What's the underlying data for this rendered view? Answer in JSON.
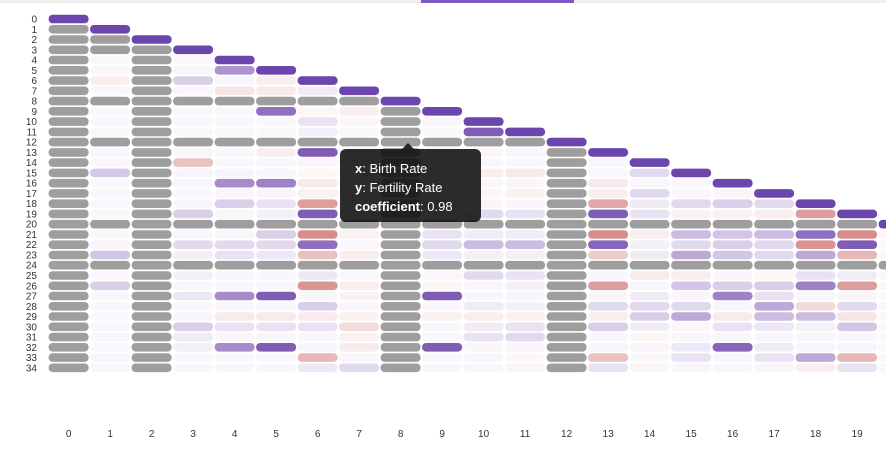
{
  "chart_data": {
    "type": "heatmap",
    "title": "",
    "xlabel": "",
    "ylabel": "",
    "x_categories": [
      "0",
      "1",
      "2",
      "3",
      "4",
      "5",
      "6",
      "7",
      "8",
      "9",
      "10",
      "11",
      "12",
      "13",
      "14",
      "15",
      "16",
      "17",
      "18",
      "19"
    ],
    "y_categories": [
      "0",
      "1",
      "2",
      "3",
      "4",
      "5",
      "6",
      "7",
      "8",
      "9",
      "10",
      "11",
      "12",
      "13",
      "14",
      "15",
      "16",
      "17",
      "18",
      "19",
      "20",
      "21",
      "22",
      "23",
      "24",
      "25",
      "26",
      "27",
      "28",
      "29",
      "30",
      "31",
      "32",
      "33",
      "34"
    ],
    "value_range": [
      -1,
      1
    ],
    "colors": {
      "positive": "#6a3fa8",
      "negative": "#c0504d",
      "diagonal": "#6b46ad",
      "missing": "#9e9e9e"
    },
    "missing_columns": [
      0,
      2,
      8,
      12
    ],
    "missing_rows": [
      2,
      3,
      8,
      12,
      20,
      24
    ],
    "tooltip": {
      "x_key": "x",
      "x_value": "Birth Rate",
      "y_key": "y",
      "y_value": "Fertility Rate",
      "coef_key": "coefficient",
      "coef_value": "0.98"
    },
    "cells": [
      [
        0,
        1,
        0.05
      ],
      [
        0,
        2,
        0.0
      ],
      [
        1,
        4,
        0.03
      ],
      [
        1,
        5,
        0.03
      ],
      [
        1,
        6,
        -0.1
      ],
      [
        1,
        7,
        0.02
      ],
      [
        1,
        13,
        0.02
      ],
      [
        1,
        15,
        0.28
      ],
      [
        1,
        16,
        0.03
      ],
      [
        1,
        19,
        0.02
      ],
      [
        1,
        21,
        0.03
      ],
      [
        1,
        22,
        0.05
      ],
      [
        1,
        23,
        0.3
      ],
      [
        1,
        25,
        0.03
      ],
      [
        1,
        26,
        0.25
      ],
      [
        1,
        33,
        0.05
      ],
      [
        3,
        5,
        0.05
      ],
      [
        3,
        6,
        0.25
      ],
      [
        3,
        7,
        0.03
      ],
      [
        3,
        13,
        0.05
      ],
      [
        3,
        14,
        -0.35
      ],
      [
        3,
        15,
        0.05
      ],
      [
        3,
        16,
        0.05
      ],
      [
        3,
        17,
        0.03
      ],
      [
        3,
        18,
        0.05
      ],
      [
        3,
        19,
        0.25
      ],
      [
        3,
        21,
        0.05
      ],
      [
        3,
        22,
        0.2
      ],
      [
        3,
        23,
        0.08
      ],
      [
        3,
        25,
        0.08
      ],
      [
        3,
        26,
        0.05
      ],
      [
        3,
        27,
        0.12
      ],
      [
        3,
        29,
        0.05
      ],
      [
        3,
        30,
        0.25
      ],
      [
        3,
        31,
        0.1
      ],
      [
        3,
        32,
        0.08
      ],
      [
        3,
        33,
        0.03
      ],
      [
        3,
        34,
        0.03
      ],
      [
        4,
        5,
        0.55
      ],
      [
        4,
        6,
        0.03
      ],
      [
        4,
        7,
        -0.15
      ],
      [
        4,
        9,
        0.03
      ],
      [
        4,
        10,
        0.03
      ],
      [
        4,
        13,
        0.04
      ],
      [
        4,
        15,
        0.06
      ],
      [
        4,
        16,
        0.6
      ],
      [
        4,
        17,
        0.05
      ],
      [
        4,
        18,
        0.25
      ],
      [
        4,
        19,
        0.05
      ],
      [
        4,
        21,
        0.05
      ],
      [
        4,
        22,
        0.2
      ],
      [
        4,
        23,
        0.15
      ],
      [
        4,
        25,
        0.05
      ],
      [
        4,
        26,
        0.03
      ],
      [
        4,
        27,
        0.6
      ],
      [
        4,
        28,
        0.03
      ],
      [
        4,
        29,
        -0.12
      ],
      [
        4,
        30,
        0.15
      ],
      [
        4,
        31,
        0.05
      ],
      [
        4,
        32,
        0.6
      ],
      [
        4,
        33,
        0.03
      ],
      [
        4,
        34,
        0.03
      ],
      [
        5,
        6,
        -0.1
      ],
      [
        5,
        7,
        -0.12
      ],
      [
        5,
        9,
        0.75
      ],
      [
        5,
        10,
        0.03
      ],
      [
        5,
        13,
        -0.1
      ],
      [
        5,
        15,
        0.05
      ],
      [
        5,
        16,
        0.65
      ],
      [
        5,
        17,
        0.05
      ],
      [
        5,
        18,
        0.15
      ],
      [
        5,
        19,
        0.08
      ],
      [
        5,
        21,
        0.25
      ],
      [
        5,
        22,
        0.2
      ],
      [
        5,
        23,
        0.12
      ],
      [
        5,
        25,
        0.05
      ],
      [
        5,
        26,
        0.03
      ],
      [
        5,
        27,
        0.85
      ],
      [
        5,
        28,
        0.03
      ],
      [
        5,
        29,
        -0.12
      ],
      [
        5,
        30,
        0.15
      ],
      [
        5,
        31,
        0.05
      ],
      [
        5,
        32,
        0.85
      ],
      [
        5,
        33,
        0.03
      ],
      [
        5,
        34,
        0.03
      ],
      [
        6,
        7,
        0.1
      ],
      [
        6,
        9,
        -0.05
      ],
      [
        6,
        10,
        0.15
      ],
      [
        6,
        11,
        0.08
      ],
      [
        6,
        13,
        0.85
      ],
      [
        6,
        14,
        0.05
      ],
      [
        6,
        15,
        -0.05
      ],
      [
        6,
        16,
        -0.12
      ],
      [
        6,
        17,
        -0.08
      ],
      [
        6,
        18,
        -0.55
      ],
      [
        6,
        19,
        0.85
      ],
      [
        6,
        21,
        -0.65
      ],
      [
        6,
        22,
        0.75
      ],
      [
        6,
        23,
        -0.35
      ],
      [
        6,
        25,
        0.12
      ],
      [
        6,
        26,
        -0.6
      ],
      [
        6,
        27,
        0.05
      ],
      [
        6,
        28,
        0.25
      ],
      [
        6,
        29,
        -0.12
      ],
      [
        6,
        30,
        0.15
      ],
      [
        6,
        31,
        0.05
      ],
      [
        6,
        32,
        0.05
      ],
      [
        6,
        33,
        -0.4
      ],
      [
        6,
        34,
        0.12
      ],
      [
        7,
        9,
        -0.1
      ],
      [
        7,
        10,
        0.02
      ],
      [
        7,
        11,
        0.03
      ],
      [
        7,
        13,
        0.05
      ],
      [
        7,
        14,
        0.02
      ],
      [
        7,
        15,
        0.02
      ],
      [
        7,
        16,
        -0.1
      ],
      [
        7,
        17,
        0.03
      ],
      [
        7,
        18,
        -0.08
      ],
      [
        7,
        19,
        0.04
      ],
      [
        7,
        21,
        -0.08
      ],
      [
        7,
        22,
        0.03
      ],
      [
        7,
        23,
        -0.1
      ],
      [
        7,
        25,
        0.02
      ],
      [
        7,
        26,
        -0.1
      ],
      [
        7,
        27,
        -0.08
      ],
      [
        7,
        28,
        0.02
      ],
      [
        7,
        29,
        -0.08
      ],
      [
        7,
        30,
        -0.2
      ],
      [
        7,
        31,
        -0.08
      ],
      [
        7,
        32,
        -0.12
      ],
      [
        7,
        33,
        0.05
      ],
      [
        7,
        34,
        0.2
      ],
      [
        9,
        10,
        0.05
      ],
      [
        9,
        11,
        0.03
      ],
      [
        9,
        13,
        0.05
      ],
      [
        9,
        14,
        0.03
      ],
      [
        9,
        15,
        0.03
      ],
      [
        9,
        16,
        -0.05
      ],
      [
        9,
        17,
        0.03
      ],
      [
        9,
        18,
        0.12
      ],
      [
        9,
        19,
        -0.05
      ],
      [
        9,
        21,
        0.15
      ],
      [
        9,
        22,
        0.2
      ],
      [
        9,
        23,
        0.12
      ],
      [
        9,
        25,
        0.03
      ],
      [
        9,
        26,
        -0.05
      ],
      [
        9,
        27,
        0.85
      ],
      [
        9,
        28,
        0.03
      ],
      [
        9,
        29,
        -0.08
      ],
      [
        9,
        30,
        0.05
      ],
      [
        9,
        31,
        0.03
      ],
      [
        9,
        32,
        0.85
      ],
      [
        9,
        33,
        0.03
      ],
      [
        9,
        34,
        0.03
      ],
      [
        10,
        11,
        0.85
      ],
      [
        10,
        13,
        -0.05
      ],
      [
        10,
        14,
        0.02
      ],
      [
        10,
        15,
        -0.1
      ],
      [
        10,
        16,
        0.03
      ],
      [
        10,
        17,
        -0.05
      ],
      [
        10,
        18,
        0.05
      ],
      [
        10,
        19,
        0.2
      ],
      [
        10,
        21,
        0.1
      ],
      [
        10,
        22,
        0.35
      ],
      [
        10,
        23,
        0.08
      ],
      [
        10,
        25,
        0.2
      ],
      [
        10,
        26,
        0.05
      ],
      [
        10,
        27,
        0.05
      ],
      [
        10,
        28,
        0.1
      ],
      [
        10,
        29,
        -0.1
      ],
      [
        10,
        30,
        0.1
      ],
      [
        10,
        31,
        0.15
      ],
      [
        10,
        32,
        0.05
      ],
      [
        10,
        33,
        0.05
      ],
      [
        10,
        34,
        0.02
      ],
      [
        11,
        13,
        0.05
      ],
      [
        11,
        14,
        0.02
      ],
      [
        11,
        15,
        -0.12
      ],
      [
        11,
        16,
        0.05
      ],
      [
        11,
        17,
        -0.08
      ],
      [
        11,
        18,
        0.05
      ],
      [
        11,
        19,
        0.15
      ],
      [
        11,
        21,
        0.1
      ],
      [
        11,
        22,
        0.35
      ],
      [
        11,
        23,
        0.08
      ],
      [
        11,
        25,
        0.15
      ],
      [
        11,
        26,
        0.08
      ],
      [
        11,
        27,
        0.05
      ],
      [
        11,
        28,
        0.08
      ],
      [
        11,
        29,
        -0.08
      ],
      [
        11,
        30,
        0.15
      ],
      [
        11,
        31,
        0.2
      ],
      [
        11,
        32,
        0.05
      ],
      [
        11,
        33,
        -0.03
      ],
      [
        11,
        34,
        0.05
      ],
      [
        13,
        14,
        0.05
      ],
      [
        13,
        15,
        0.03
      ],
      [
        13,
        16,
        -0.12
      ],
      [
        13,
        17,
        -0.1
      ],
      [
        13,
        18,
        -0.5
      ],
      [
        13,
        19,
        0.85
      ],
      [
        13,
        21,
        -0.65
      ],
      [
        13,
        22,
        0.8
      ],
      [
        13,
        23,
        -0.3
      ],
      [
        13,
        25,
        0.05
      ],
      [
        13,
        26,
        -0.55
      ],
      [
        13,
        27,
        0.05
      ],
      [
        13,
        28,
        0.2
      ],
      [
        13,
        29,
        -0.1
      ],
      [
        13,
        30,
        0.25
      ],
      [
        13,
        31,
        0.03
      ],
      [
        13,
        32,
        0.05
      ],
      [
        13,
        33,
        -0.35
      ],
      [
        13,
        34,
        0.15
      ],
      [
        14,
        15,
        0.2
      ],
      [
        14,
        16,
        0.03
      ],
      [
        14,
        17,
        0.2
      ],
      [
        14,
        18,
        0.1
      ],
      [
        14,
        19,
        0.15
      ],
      [
        14,
        21,
        -0.1
      ],
      [
        14,
        22,
        0.08
      ],
      [
        14,
        23,
        0.1
      ],
      [
        14,
        25,
        -0.12
      ],
      [
        14,
        26,
        0.05
      ],
      [
        14,
        27,
        0.1
      ],
      [
        14,
        28,
        0.2
      ],
      [
        14,
        29,
        0.25
      ],
      [
        14,
        30,
        0.1
      ],
      [
        14,
        31,
        -0.05
      ],
      [
        14,
        32,
        0.05
      ],
      [
        14,
        33,
        0.03
      ],
      [
        14,
        34,
        -0.05
      ],
      [
        15,
        16,
        0.05
      ],
      [
        15,
        17,
        0.03
      ],
      [
        15,
        18,
        0.2
      ],
      [
        15,
        19,
        -0.08
      ],
      [
        15,
        21,
        0.35
      ],
      [
        15,
        22,
        0.2
      ],
      [
        15,
        23,
        0.45
      ],
      [
        15,
        25,
        -0.1
      ],
      [
        15,
        26,
        0.3
      ],
      [
        15,
        27,
        0.05
      ],
      [
        15,
        28,
        0.2
      ],
      [
        15,
        29,
        0.45
      ],
      [
        15,
        30,
        -0.05
      ],
      [
        15,
        31,
        0.05
      ],
      [
        15,
        32,
        0.12
      ],
      [
        15,
        33,
        0.15
      ],
      [
        15,
        34,
        0.05
      ],
      [
        16,
        17,
        0.05
      ],
      [
        16,
        18,
        0.25
      ],
      [
        16,
        19,
        -0.08
      ],
      [
        16,
        21,
        0.3
      ],
      [
        16,
        22,
        0.25
      ],
      [
        16,
        23,
        0.3
      ],
      [
        16,
        25,
        0.05
      ],
      [
        16,
        26,
        0.25
      ],
      [
        16,
        27,
        0.65
      ],
      [
        16,
        28,
        0.05
      ],
      [
        16,
        29,
        -0.12
      ],
      [
        16,
        30,
        0.15
      ],
      [
        16,
        31,
        0.05
      ],
      [
        16,
        32,
        0.8
      ],
      [
        16,
        33,
        0.05
      ],
      [
        16,
        34,
        0.03
      ],
      [
        17,
        18,
        0.2
      ],
      [
        17,
        19,
        -0.1
      ],
      [
        17,
        21,
        0.35
      ],
      [
        17,
        22,
        0.2
      ],
      [
        17,
        23,
        0.2
      ],
      [
        17,
        25,
        -0.05
      ],
      [
        17,
        26,
        0.25
      ],
      [
        17,
        27,
        0.15
      ],
      [
        17,
        28,
        0.45
      ],
      [
        17,
        29,
        0.35
      ],
      [
        17,
        30,
        0.12
      ],
      [
        17,
        31,
        0.05
      ],
      [
        17,
        32,
        0.1
      ],
      [
        17,
        33,
        0.15
      ],
      [
        17,
        34,
        0.05
      ],
      [
        18,
        19,
        -0.55
      ],
      [
        18,
        21,
        0.75
      ],
      [
        18,
        22,
        -0.6
      ],
      [
        18,
        23,
        0.45
      ],
      [
        18,
        25,
        0.15
      ],
      [
        18,
        26,
        0.65
      ],
      [
        18,
        27,
        0.05
      ],
      [
        18,
        28,
        -0.2
      ],
      [
        18,
        29,
        0.35
      ],
      [
        18,
        30,
        0.08
      ],
      [
        18,
        31,
        0.05
      ],
      [
        18,
        32,
        0.05
      ],
      [
        18,
        33,
        0.45
      ],
      [
        18,
        34,
        -0.1
      ],
      [
        19,
        21,
        -0.65
      ],
      [
        19,
        22,
        0.85
      ],
      [
        19,
        23,
        -0.4
      ],
      [
        19,
        25,
        0.1
      ],
      [
        19,
        26,
        -0.55
      ],
      [
        19,
        27,
        0.05
      ],
      [
        19,
        28,
        0.2
      ],
      [
        19,
        29,
        -0.15
      ],
      [
        19,
        30,
        0.3
      ],
      [
        19,
        31,
        0.03
      ],
      [
        19,
        32,
        0.05
      ],
      [
        19,
        33,
        -0.4
      ],
      [
        19,
        34,
        0.15
      ]
    ]
  }
}
